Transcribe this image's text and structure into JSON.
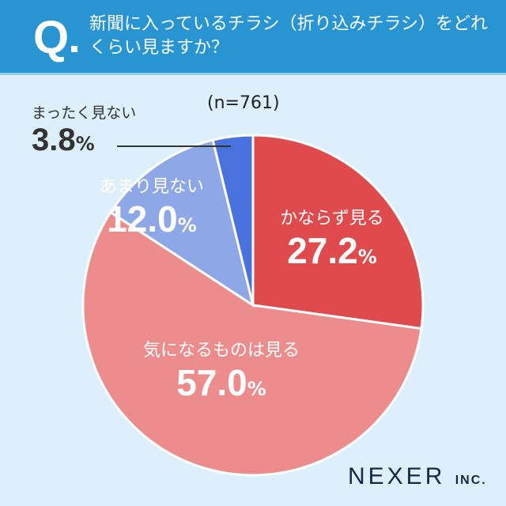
{
  "header": {
    "q_mark": "Q",
    "title": "新聞に入っているチラシ（折り込みチラシ）をどれくらい見ますか？"
  },
  "note": "(n=761)",
  "chart_data": {
    "type": "pie",
    "title": "新聞に入っているチラシ（折り込みチラシ）をどれくらい見ますか？",
    "n": 761,
    "categories": [
      "かならず見る",
      "気になるものは見る",
      "あまり見ない",
      "まったく見ない"
    ],
    "values": [
      27.2,
      57.0,
      12.0,
      3.8
    ],
    "colors": [
      "#df4a4c",
      "#ec8c8c",
      "#8ea7e6",
      "#4a72dd"
    ],
    "value_labels": [
      "27.2",
      "57.0",
      "12.0",
      "3.8"
    ],
    "unit": "%",
    "start": "top",
    "direction": "clockwise"
  },
  "logo": {
    "name": "NEXER",
    "suffix": "INC."
  }
}
